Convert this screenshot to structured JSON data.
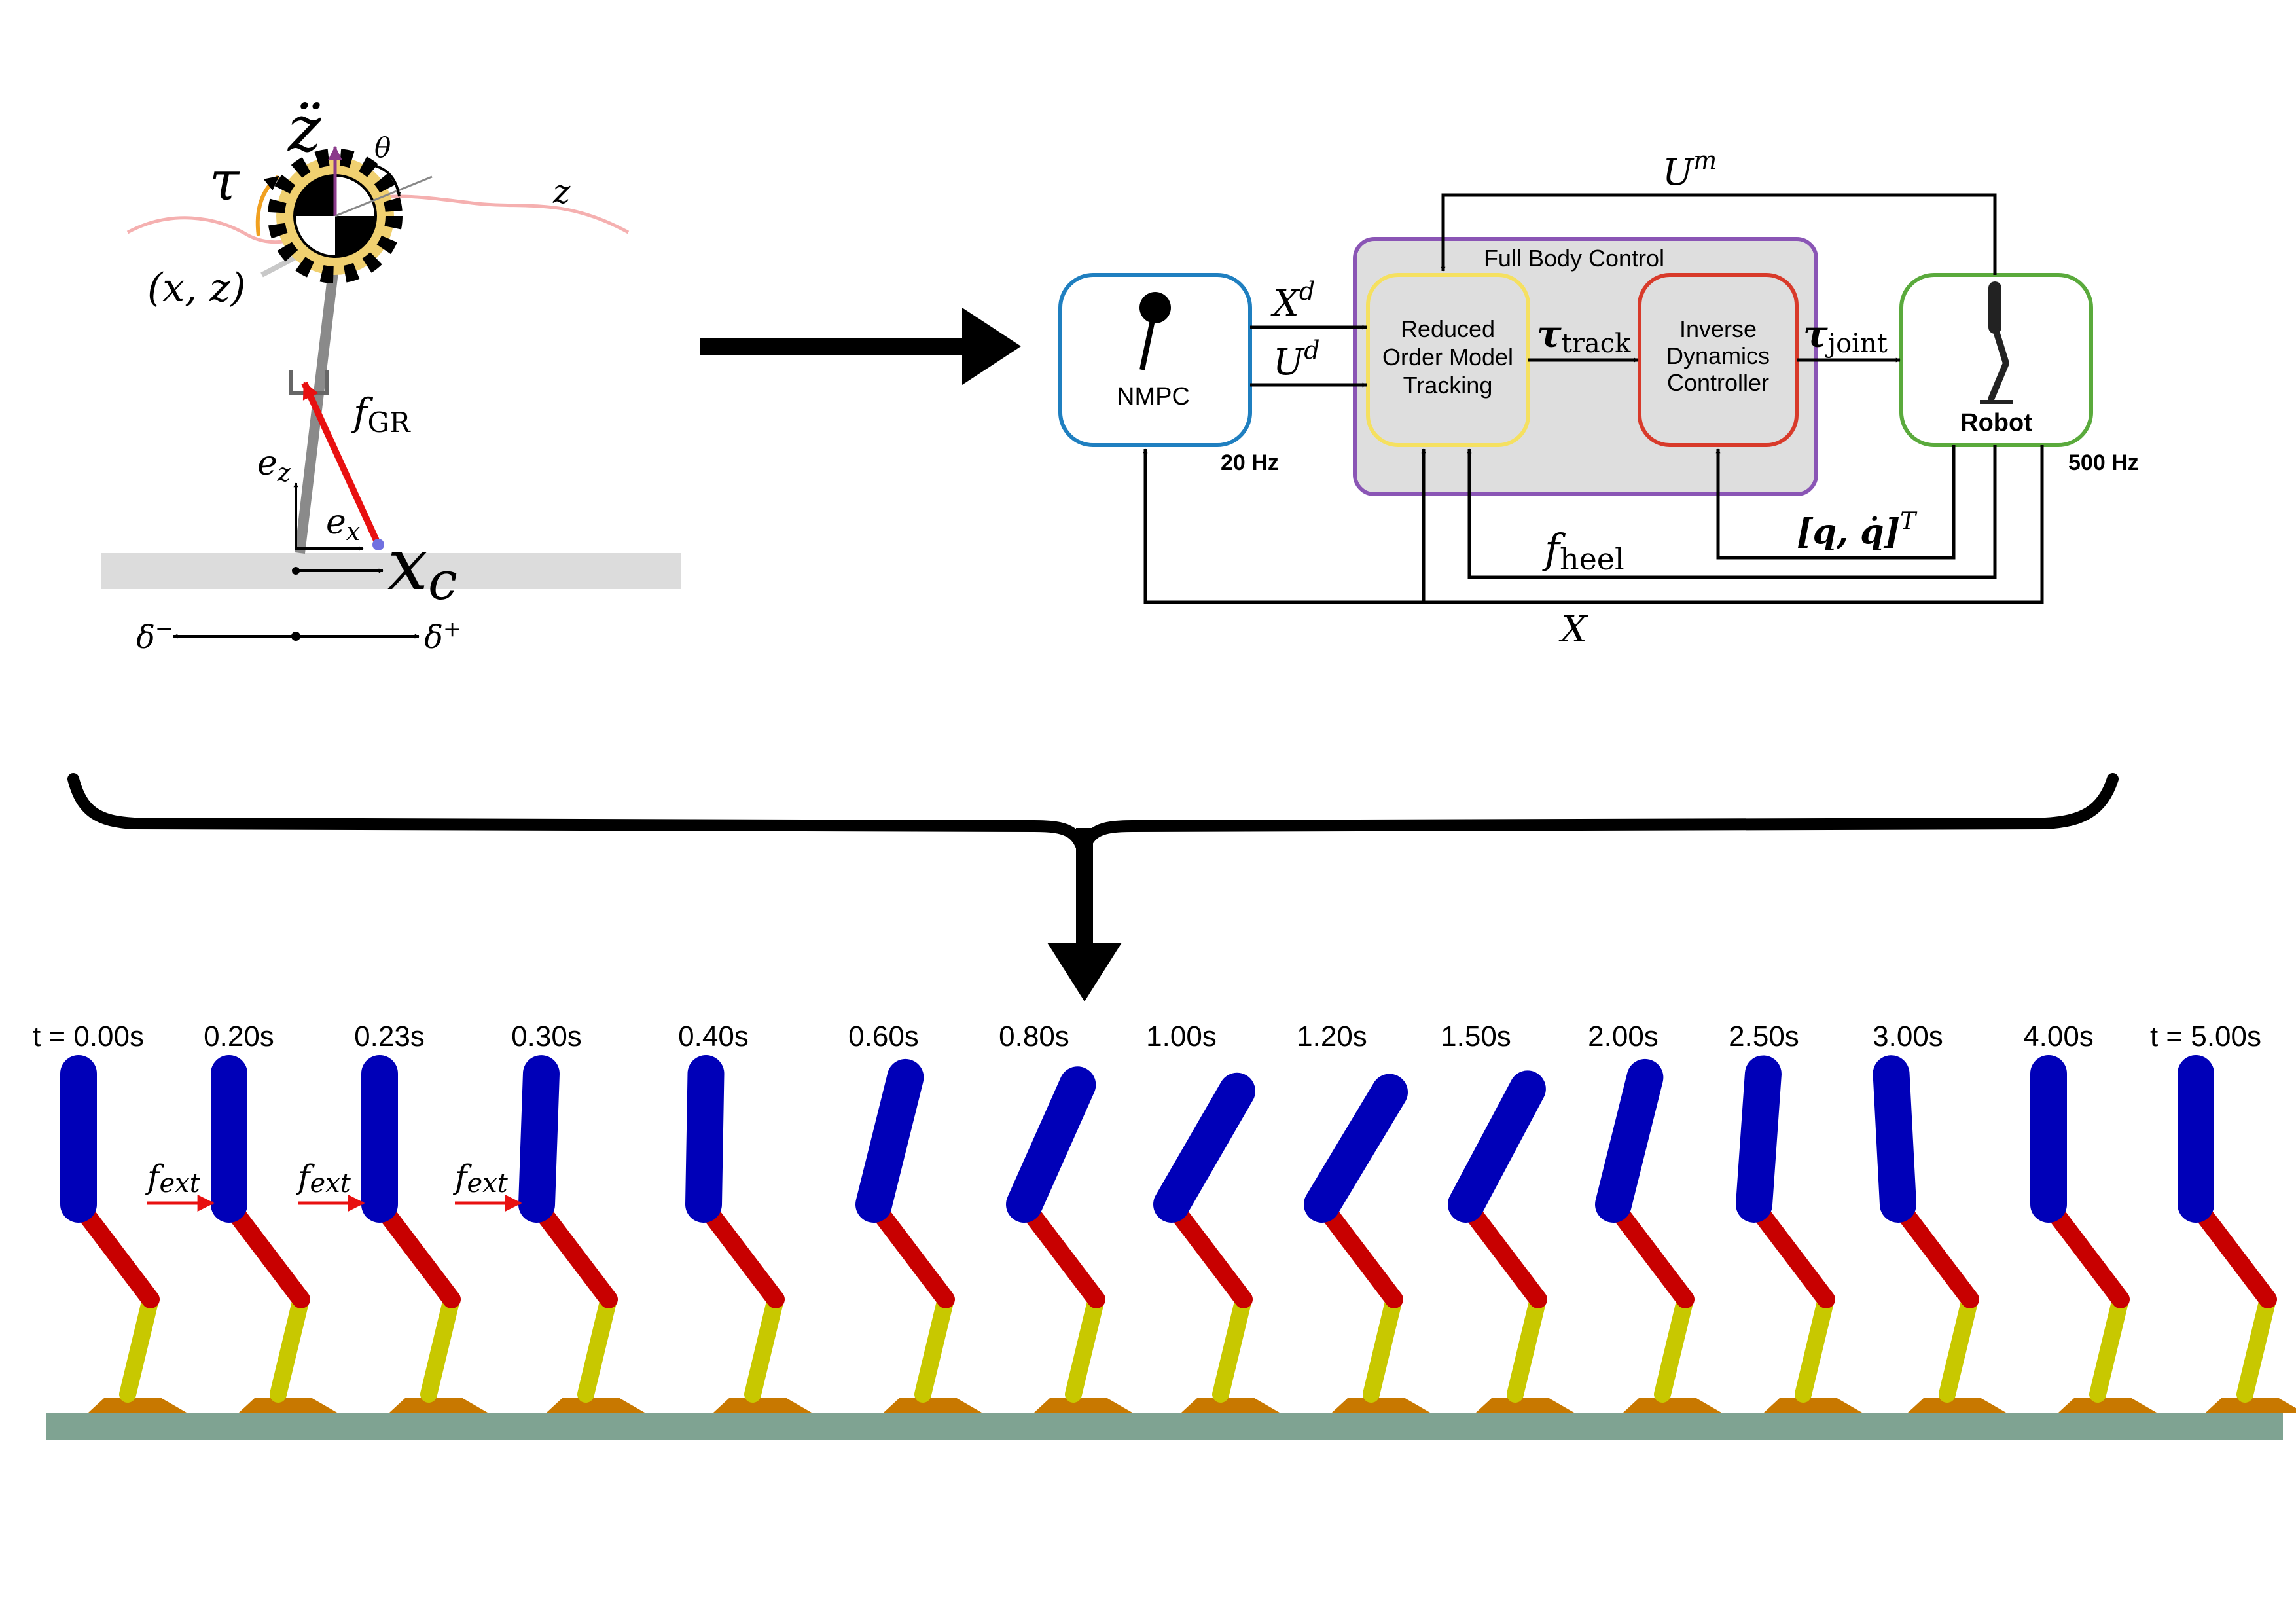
{
  "colors": {
    "torso": "#0000b8",
    "thigh": "#c80000",
    "shank": "#c8c800",
    "foot": "#c87800",
    "ground": "#7fa392",
    "nmpc": "#1f7fc0",
    "full_body": "#8a55b5",
    "rom": "#f5e060",
    "inv_dyn": "#d83a2a",
    "robot": "#5aaa3c",
    "fext": "#e81010"
  },
  "model": {
    "tau": "τ",
    "zddot": "z̈",
    "theta": "θ",
    "z": "z",
    "xz": "(x, z)",
    "fgr": "f",
    "fgr_sub": "GR",
    "ez": "e",
    "ez_sub": "z",
    "ex": "e",
    "ex_sub": "x",
    "xc": "x",
    "xc_sub": "c",
    "delta_minus": "δ",
    "delta_minus_sup": "−",
    "delta_plus": "δ",
    "delta_plus_sup": "+"
  },
  "block": {
    "nmpc": "NMPC",
    "full_body": "Full Body Control",
    "rom": [
      "Reduced",
      "Order Model",
      "Tracking"
    ],
    "inv_dyn": [
      "Inverse",
      "Dynamics",
      "Controller"
    ],
    "robot": "Robot",
    "hz20": "20 Hz",
    "hz500": "500 Hz",
    "um": "U",
    "um_sup": "m",
    "xd": "X",
    "xd_sup": "d",
    "ud": "U",
    "ud_sup": "d",
    "tau_track": "τ",
    "tau_track_sub": "track",
    "tau_joint": "τ",
    "tau_joint_sub": "joint",
    "fheel": "f",
    "fheel_sub": "heel",
    "qvec": "[q, q̇]",
    "qvec_sup": "T",
    "x": "X"
  },
  "sequence": {
    "frames": [
      {
        "label": "t = 0.00s",
        "angle": 0,
        "fext": false
      },
      {
        "label": "0.20s",
        "angle": 0,
        "fext": true
      },
      {
        "label": "0.23s",
        "angle": 0,
        "fext": true
      },
      {
        "label": "0.30s",
        "angle": -2,
        "fext": true
      },
      {
        "label": "0.40s",
        "angle": -1,
        "fext": false
      },
      {
        "label": "0.60s",
        "angle": -14,
        "fext": false
      },
      {
        "label": "0.80s",
        "angle": -24,
        "fext": false
      },
      {
        "label": "1.00s",
        "angle": -30,
        "fext": false
      },
      {
        "label": "1.20s",
        "angle": -31,
        "fext": false
      },
      {
        "label": "1.50s",
        "angle": -28,
        "fext": false
      },
      {
        "label": "2.00s",
        "angle": -14,
        "fext": false
      },
      {
        "label": "2.50s",
        "angle": -4,
        "fext": false
      },
      {
        "label": "3.00s",
        "angle": 3,
        "fext": false
      },
      {
        "label": "4.00s",
        "angle": 0,
        "fext": false
      },
      {
        "label": "t = 5.00s",
        "angle": 0,
        "fext": false
      }
    ],
    "fext": "f",
    "fext_sub": "ext"
  }
}
